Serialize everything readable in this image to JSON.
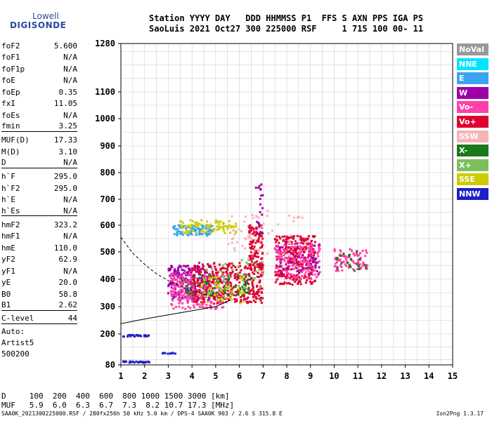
{
  "logo": {
    "line1": "Lowell",
    "line2": "DIGISONDE"
  },
  "header": {
    "line1": "Station YYYY DAY   DDD HHMMSS P1  FFS S AXN PPS IGA PS",
    "line2": "SaoLuis 2021 Oct27 300 225000 RSF     1 715 100 00- 11"
  },
  "params": {
    "group1": [
      {
        "k": "foF2",
        "v": "5.600"
      },
      {
        "k": "foF1",
        "v": "N/A"
      },
      {
        "k": "foF1p",
        "v": "N/A"
      },
      {
        "k": "foE",
        "v": "N/A"
      },
      {
        "k": "foEp",
        "v": "0.35"
      },
      {
        "k": "fxI",
        "v": "11.05"
      },
      {
        "k": "foEs",
        "v": "N/A"
      },
      {
        "k": "fmin",
        "v": "3.25"
      }
    ],
    "group2": [
      {
        "k": "MUF(D)",
        "v": "17.33"
      },
      {
        "k": "M(D)",
        "v": "3.10"
      },
      {
        "k": "D",
        "v": "N/A"
      }
    ],
    "group3": [
      {
        "k": "h`F",
        "v": "295.0"
      },
      {
        "k": "h`F2",
        "v": "295.0"
      },
      {
        "k": "h`E",
        "v": "N/A"
      },
      {
        "k": "h`Es",
        "v": "N/A"
      }
    ],
    "group4": [
      {
        "k": "hmF2",
        "v": "323.2"
      },
      {
        "k": "hmF1",
        "v": "N/A"
      },
      {
        "k": "hmE",
        "v": "110.0"
      },
      {
        "k": "yF2",
        "v": "62.9"
      },
      {
        "k": "yF1",
        "v": "N/A"
      },
      {
        "k": "yE",
        "v": "20.0"
      },
      {
        "k": "B0",
        "v": "58.8"
      },
      {
        "k": "B1",
        "v": "2.62"
      }
    ],
    "group5": [
      {
        "k": "C-level",
        "v": "44"
      }
    ],
    "auto": [
      "Auto:",
      "Artist5",
      "500200"
    ]
  },
  "legend": [
    {
      "label": "NoVal",
      "color": "#999999"
    },
    {
      "label": "NNE",
      "color": "#00e5ff"
    },
    {
      "label": "E",
      "color": "#3ba4f0"
    },
    {
      "label": "W",
      "color": "#a000a8"
    },
    {
      "label": "Vo-",
      "color": "#ff3fa8"
    },
    {
      "label": "Vo+",
      "color": "#e00030"
    },
    {
      "label": "SSW",
      "color": "#f5b5b5"
    },
    {
      "label": "X-",
      "color": "#1a7a1a"
    },
    {
      "label": "X+",
      "color": "#7cbf5c"
    },
    {
      "label": "SSE",
      "color": "#cccc00"
    },
    {
      "label": "NNW",
      "color": "#2020c8"
    }
  ],
  "dmuf": {
    "line1": "D     100  200  400  600  800 1000 1500 3000 [km]",
    "line2": "MUF   5.9  6.0  6.3  6.7  7.3  8.2 10.7 17.3 [MHz]"
  },
  "footer": {
    "left": "SAA0K_2021300225000.RSF / 280fx256h 50 kHz 5.0 km / DPS-4 SAA0K 903 / 2.6 S 315.8 E",
    "right": "Ion2Png 1.3.17"
  },
  "chart_data": {
    "type": "scatter",
    "title": "",
    "xlabel": "",
    "ylabel": "",
    "xlim": [
      1,
      15
    ],
    "ylim": [
      80,
      1280
    ],
    "x_ticks": [
      1,
      2,
      3,
      4,
      5,
      6,
      7,
      8,
      9,
      10,
      11,
      12,
      13,
      14,
      15
    ],
    "y_ticks": [
      80,
      200,
      300,
      400,
      500,
      600,
      700,
      800,
      900,
      1000,
      1100,
      1280
    ],
    "grid": true,
    "clusters": [
      {
        "name": "W",
        "color": "#a000a8",
        "xmin": 3.0,
        "xmax": 4.8,
        "ymin": 320,
        "ymax": 450,
        "n": 220
      },
      {
        "name": "Vo-",
        "color": "#ff3fa8",
        "xmin": 3.1,
        "xmax": 5.5,
        "ymin": 290,
        "ymax": 420,
        "n": 260
      },
      {
        "name": "Vo+",
        "color": "#e00030",
        "xmin": 4.0,
        "xmax": 7.0,
        "ymin": 310,
        "ymax": 460,
        "n": 320
      },
      {
        "name": "Vo+",
        "color": "#e00030",
        "xmin": 6.4,
        "xmax": 7.0,
        "ymin": 430,
        "ymax": 600,
        "n": 120
      },
      {
        "name": "Vo+",
        "color": "#e00030",
        "xmin": 7.5,
        "xmax": 9.2,
        "ymin": 380,
        "ymax": 560,
        "n": 300
      },
      {
        "name": "Vo-",
        "color": "#ff3fa8",
        "xmin": 7.5,
        "xmax": 9.4,
        "ymin": 400,
        "ymax": 530,
        "n": 160
      },
      {
        "name": "W",
        "color": "#a000a8",
        "xmin": 7.7,
        "xmax": 9.4,
        "ymin": 420,
        "ymax": 540,
        "n": 60
      },
      {
        "name": "Vo-",
        "color": "#ff3fa8",
        "xmin": 10.0,
        "xmax": 11.4,
        "ymin": 430,
        "ymax": 510,
        "n": 90
      },
      {
        "name": "X-",
        "color": "#1a7a1a",
        "xmin": 10.0,
        "xmax": 11.4,
        "ymin": 430,
        "ymax": 510,
        "n": 20
      },
      {
        "name": "E",
        "color": "#3ba4f0",
        "xmin": 3.2,
        "xmax": 4.9,
        "ymin": 560,
        "ymax": 600,
        "n": 100
      },
      {
        "name": "SSE",
        "color": "#cccc00",
        "xmin": 3.5,
        "xmax": 5.9,
        "ymin": 570,
        "ymax": 620,
        "n": 90
      },
      {
        "name": "X-",
        "color": "#1a7a1a",
        "xmin": 3.5,
        "xmax": 6.5,
        "ymin": 340,
        "ymax": 420,
        "n": 70
      },
      {
        "name": "X+",
        "color": "#7cbf5c",
        "xmin": 4.5,
        "xmax": 7.0,
        "ymin": 330,
        "ymax": 470,
        "n": 50
      },
      {
        "name": "SSE",
        "color": "#cccc00",
        "xmin": 4.3,
        "xmax": 6.2,
        "ymin": 310,
        "ymax": 420,
        "n": 50
      },
      {
        "name": "SSW",
        "color": "#f5b5b5",
        "xmin": 6.0,
        "xmax": 9.0,
        "ymin": 430,
        "ymax": 660,
        "n": 40
      },
      {
        "name": "NNW",
        "color": "#2020c8",
        "xmin": 1.1,
        "xmax": 2.2,
        "ymin": 190,
        "ymax": 196,
        "n": 25
      },
      {
        "name": "NNW",
        "color": "#2020c8",
        "xmin": 1.1,
        "xmax": 2.2,
        "ymin": 88,
        "ymax": 94,
        "n": 25
      },
      {
        "name": "NNW",
        "color": "#2020c8",
        "xmin": 2.7,
        "xmax": 3.3,
        "ymin": 123,
        "ymax": 127,
        "n": 10
      },
      {
        "name": "W",
        "color": "#a000a8",
        "xmin": 6.7,
        "xmax": 7.0,
        "ymin": 560,
        "ymax": 760,
        "n": 20
      },
      {
        "name": "SSW",
        "color": "#f5b5b5",
        "xmin": 5.5,
        "xmax": 7.0,
        "ymin": 500,
        "ymax": 640,
        "n": 25
      }
    ],
    "lines": [
      {
        "name": "trace",
        "style": "solid",
        "points": [
          [
            1.0,
            238
          ],
          [
            2.0,
            255
          ],
          [
            3.0,
            270
          ],
          [
            4.0,
            285
          ],
          [
            5.0,
            300
          ],
          [
            5.6,
            323
          ]
        ]
      },
      {
        "name": "fit",
        "style": "dashed",
        "points": [
          [
            1.0,
            555
          ],
          [
            1.5,
            495
          ],
          [
            2.0,
            455
          ],
          [
            2.5,
            420
          ],
          [
            3.0,
            395
          ],
          [
            3.5,
            375
          ],
          [
            4.0,
            360
          ],
          [
            4.5,
            345
          ],
          [
            5.0,
            335
          ],
          [
            5.5,
            325
          ]
        ]
      }
    ]
  }
}
